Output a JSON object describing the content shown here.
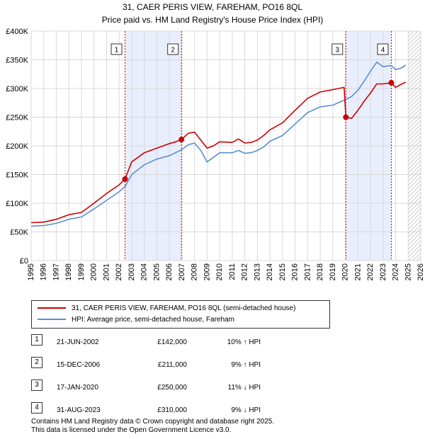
{
  "chart_data": {
    "type": "line",
    "title": "31, CAER PERIS VIEW, FAREHAM, PO16 8QL",
    "subtitle": "Price paid vs. HM Land Registry's House Price Index (HPI)",
    "xlim": [
      1995,
      2026
    ],
    "ylim": [
      0,
      400000
    ],
    "x_ticks": [
      "1995",
      "1996",
      "1997",
      "1998",
      "1999",
      "2000",
      "2001",
      "2002",
      "2003",
      "2004",
      "2005",
      "2006",
      "2007",
      "2008",
      "2009",
      "2010",
      "2011",
      "2012",
      "2013",
      "2014",
      "2015",
      "2016",
      "2017",
      "2018",
      "2019",
      "2020",
      "2021",
      "2022",
      "2023",
      "2024",
      "2025",
      "2026"
    ],
    "y_ticks": [
      {
        "value": 0,
        "label": "£0"
      },
      {
        "value": 50000,
        "label": "£50K"
      },
      {
        "value": 100000,
        "label": "£100K"
      },
      {
        "value": 150000,
        "label": "£150K"
      },
      {
        "value": 200000,
        "label": "£200K"
      },
      {
        "value": 250000,
        "label": "£250K"
      },
      {
        "value": 300000,
        "label": "£300K"
      },
      {
        "value": 350000,
        "label": "£350K"
      },
      {
        "value": 400000,
        "label": "£400K"
      }
    ],
    "future_start": 2025.0,
    "series": [
      {
        "name": "31, CAER PERIS VIEW, FAREHAM, PO16 8QL (semi-detached house)",
        "color": "#cc0000",
        "points": [
          [
            1995.0,
            66000
          ],
          [
            1996.0,
            67000
          ],
          [
            1997.0,
            72000
          ],
          [
            1998.0,
            80000
          ],
          [
            1999.0,
            84000
          ],
          [
            2000.0,
            100000
          ],
          [
            2001.0,
            117000
          ],
          [
            2002.0,
            132000
          ],
          [
            2002.47,
            142000
          ],
          [
            2003.0,
            172000
          ],
          [
            2004.0,
            188000
          ],
          [
            2005.0,
            196000
          ],
          [
            2005.5,
            200000
          ],
          [
            2006.0,
            204000
          ],
          [
            2006.5,
            207000
          ],
          [
            2006.96,
            211000
          ],
          [
            2007.5,
            222000
          ],
          [
            2008.0,
            224000
          ],
          [
            2008.5,
            210000
          ],
          [
            2009.0,
            196000
          ],
          [
            2009.5,
            200000
          ],
          [
            2010.0,
            207000
          ],
          [
            2011.0,
            206000
          ],
          [
            2011.5,
            212000
          ],
          [
            2012.0,
            205000
          ],
          [
            2012.5,
            206000
          ],
          [
            2013.0,
            210000
          ],
          [
            2013.5,
            218000
          ],
          [
            2014.0,
            228000
          ],
          [
            2015.0,
            240000
          ],
          [
            2016.0,
            262000
          ],
          [
            2017.0,
            283000
          ],
          [
            2018.0,
            294000
          ],
          [
            2019.0,
            298000
          ],
          [
            2019.9,
            302000
          ],
          [
            2020.04,
            250000
          ],
          [
            2020.5,
            248000
          ],
          [
            2021.0,
            262000
          ],
          [
            2021.5,
            278000
          ],
          [
            2022.0,
            292000
          ],
          [
            2022.5,
            308000
          ],
          [
            2023.0,
            308000
          ],
          [
            2023.66,
            310000
          ],
          [
            2024.0,
            302000
          ],
          [
            2024.5,
            308000
          ],
          [
            2024.8,
            311000
          ]
        ]
      },
      {
        "name": "HPI: Average price, semi-detached house, Fareham",
        "color": "#5b8fd0",
        "points": [
          [
            1995.0,
            60000
          ],
          [
            1996.0,
            61000
          ],
          [
            1997.0,
            65000
          ],
          [
            1998.0,
            72000
          ],
          [
            1999.0,
            76000
          ],
          [
            2000.0,
            90000
          ],
          [
            2001.0,
            105000
          ],
          [
            2002.0,
            120000
          ],
          [
            2002.47,
            129000
          ],
          [
            2003.0,
            150000
          ],
          [
            2004.0,
            167000
          ],
          [
            2005.0,
            177000
          ],
          [
            2006.0,
            183000
          ],
          [
            2006.96,
            193000
          ],
          [
            2007.5,
            202000
          ],
          [
            2008.0,
            205000
          ],
          [
            2008.5,
            192000
          ],
          [
            2009.0,
            172000
          ],
          [
            2009.5,
            180000
          ],
          [
            2010.0,
            188000
          ],
          [
            2011.0,
            188000
          ],
          [
            2011.5,
            192000
          ],
          [
            2012.0,
            187000
          ],
          [
            2012.5,
            188000
          ],
          [
            2013.0,
            192000
          ],
          [
            2013.5,
            198000
          ],
          [
            2014.0,
            208000
          ],
          [
            2015.0,
            218000
          ],
          [
            2016.0,
            238000
          ],
          [
            2017.0,
            258000
          ],
          [
            2018.0,
            268000
          ],
          [
            2019.0,
            271000
          ],
          [
            2020.04,
            281000
          ],
          [
            2020.5,
            286000
          ],
          [
            2021.0,
            297000
          ],
          [
            2021.5,
            313000
          ],
          [
            2022.0,
            330000
          ],
          [
            2022.5,
            346000
          ],
          [
            2023.0,
            338000
          ],
          [
            2023.66,
            340000
          ],
          [
            2024.0,
            333000
          ],
          [
            2024.5,
            336000
          ],
          [
            2024.8,
            341000
          ]
        ]
      }
    ],
    "sales": [
      {
        "marker": "1",
        "x": 2002.47,
        "value": 142000
      },
      {
        "marker": "2",
        "x": 2006.96,
        "value": 211000
      },
      {
        "marker": "3",
        "x": 2020.04,
        "value": 250000
      },
      {
        "marker": "4",
        "x": 2023.66,
        "value": 310000
      }
    ],
    "shaded_ranges": [
      [
        2002.47,
        2006.96
      ],
      [
        2020.04,
        2023.66
      ]
    ]
  },
  "legend": {
    "property": "31, CAER PERIS VIEW, FAREHAM, PO16 8QL (semi-detached house)",
    "hpi": "HPI: Average price, semi-detached house, Fareham"
  },
  "sales_table": [
    {
      "num": "1",
      "date": "21-JUN-2002",
      "price": "£142,000",
      "rel": "10% ↑ HPI"
    },
    {
      "num": "2",
      "date": "15-DEC-2006",
      "price": "£211,000",
      "rel": "9% ↑ HPI"
    },
    {
      "num": "3",
      "date": "17-JAN-2020",
      "price": "£250,000",
      "rel": "11% ↓ HPI"
    },
    {
      "num": "4",
      "date": "31-AUG-2023",
      "price": "£310,000",
      "rel": "9% ↓ HPI"
    }
  ],
  "footer": {
    "line1": "Contains HM Land Registry data © Crown copyright and database right 2025.",
    "line2": "This data is licensed under the Open Government Licence v3.0."
  }
}
